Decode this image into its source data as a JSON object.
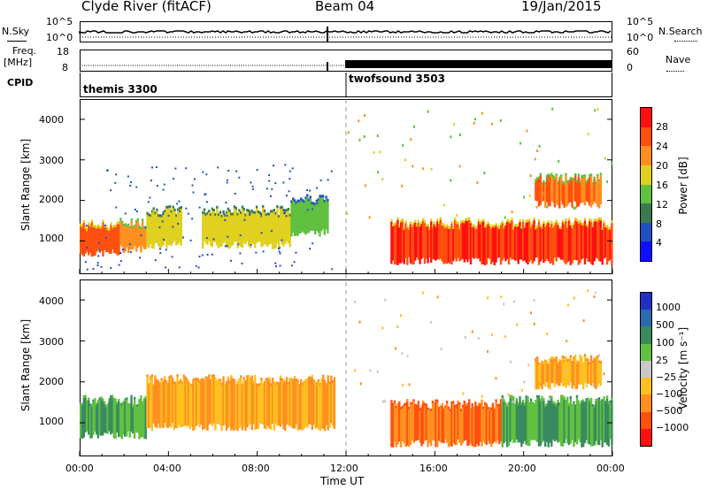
{
  "header": {
    "station": "Clyde River (fitACF)",
    "beam": "Beam 04",
    "date": "19/Jan/2015"
  },
  "small_panels": {
    "nsky_label": "N.Sky",
    "nsky_ticks": [
      "10^5",
      "10^0"
    ],
    "nsearch_label": "N.Search",
    "nsearch_ticks": [
      "10^5",
      "10^0"
    ],
    "freq_label": "Freq.",
    "freq_unit": "[MHz]",
    "freq_ticks": [
      "18",
      "8"
    ],
    "nave_label": "Nave",
    "nave_ticks": [
      "60",
      "0"
    ],
    "cpid_label": "CPID",
    "cpid_segments": [
      {
        "name": "themis 3300",
        "start_hr": 0,
        "end_hr": 12
      },
      {
        "name": "twofsound 3503",
        "start_hr": 12,
        "end_hr": 24
      }
    ]
  },
  "x_axis": {
    "label": "Time UT",
    "ticks": [
      "00:00",
      "04:00",
      "08:00",
      "12:00",
      "16:00",
      "20:00",
      "00:00"
    ]
  },
  "power_panel": {
    "ylabel": "Slant Range [km]",
    "yticks": [
      "1000",
      "2000",
      "3000",
      "4000"
    ],
    "colorbar_label": "Power [dB]",
    "colorbar_ticks": [
      "4",
      "8",
      "12",
      "16",
      "20",
      "24",
      "28"
    ],
    "colorbar_colors": [
      "#1010ff",
      "#2050c0",
      "#3a7a50",
      "#60c040",
      "#e0d020",
      "#ff9020",
      "#ff5010",
      "#ff1010"
    ]
  },
  "velocity_panel": {
    "ylabel": "Slant Range [km]",
    "yticks": [
      "1000",
      "2000",
      "3000",
      "4000"
    ],
    "colorbar_label": "Velocity [m s⁻¹]",
    "colorbar_ticks": [
      "1000",
      "500",
      "100",
      "25",
      "−25",
      "−100",
      "−500",
      "−1000"
    ],
    "colorbar_colors": [
      "#2030c0",
      "#2a6ab0",
      "#3a8a60",
      "#60c040",
      "#c8c8c8",
      "#ffc020",
      "#ff9020",
      "#ff5010",
      "#ff1010"
    ]
  },
  "chart_data": {
    "type": "heatmap",
    "x_range_hours": [
      0,
      24
    ],
    "y_range_km": [
      180,
      4500
    ],
    "power_regions_dB": [
      {
        "t0": 0.0,
        "t1": 1.8,
        "r_lo": 700,
        "r_hi": 1350,
        "level": 26
      },
      {
        "t0": 1.8,
        "t1": 3.0,
        "r_lo": 800,
        "r_hi": 1400,
        "level": 22
      },
      {
        "t0": 3.0,
        "t1": 4.6,
        "r_lo": 900,
        "r_hi": 1700,
        "level": 18
      },
      {
        "t0": 5.5,
        "t1": 9.5,
        "r_lo": 900,
        "r_hi": 1700,
        "level": 18
      },
      {
        "t0": 9.5,
        "t1": 11.2,
        "r_lo": 1200,
        "r_hi": 2000,
        "level": 14
      },
      {
        "t0": 14.0,
        "t1": 24.0,
        "r_lo": 500,
        "r_hi": 1400,
        "level": 28
      },
      {
        "t0": 20.5,
        "t1": 23.5,
        "r_lo": 1900,
        "r_hi": 2500,
        "level": 24
      }
    ],
    "velocity_regions_ms": [
      {
        "t0": 0.0,
        "t1": 3.0,
        "r_lo": 700,
        "r_hi": 1500,
        "level": 100
      },
      {
        "t0": 3.0,
        "t1": 11.5,
        "r_lo": 900,
        "r_hi": 2000,
        "level": -100
      },
      {
        "t0": 14.0,
        "t1": 19.0,
        "r_lo": 500,
        "r_hi": 1400,
        "level": -500
      },
      {
        "t0": 19.0,
        "t1": 24.0,
        "r_lo": 500,
        "r_hi": 1500,
        "level": 100
      },
      {
        "t0": 20.5,
        "t1": 23.5,
        "r_lo": 1900,
        "r_hi": 2500,
        "level": -100
      }
    ]
  }
}
